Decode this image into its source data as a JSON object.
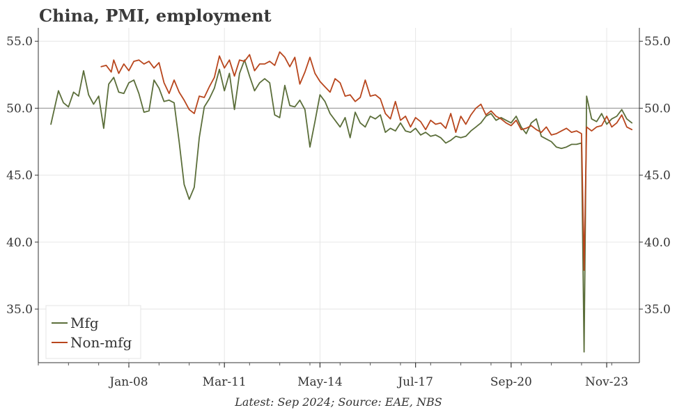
{
  "chart_data": {
    "type": "line",
    "title": "China, PMI, employment",
    "source": "Latest: Sep 2024; Source: EAE, NBS",
    "x_tick_labels": [
      "Jan-08",
      "Mar-11",
      "May-14",
      "Jul-17",
      "Sep-20",
      "Nov-23"
    ],
    "x_range": [
      "2005-01",
      "2024-12"
    ],
    "ylim": [
      31,
      56
    ],
    "y_ticks": [
      35,
      40,
      45,
      50,
      55
    ],
    "y_tick_labels": [
      "35.0",
      "40.0",
      "45.0",
      "50.0",
      "55.0"
    ],
    "reference_line": 50,
    "grid": true,
    "legend_position": "bottom-left",
    "series": [
      {
        "name": "Mfg",
        "color": "#5b6e3a",
        "points": [
          [
            "2005-06",
            48.8
          ],
          [
            "2005-09",
            51.3
          ],
          [
            "2005-11",
            50.4
          ],
          [
            "2006-01",
            50.1
          ],
          [
            "2006-03",
            51.2
          ],
          [
            "2006-05",
            50.9
          ],
          [
            "2006-07",
            52.8
          ],
          [
            "2006-09",
            51.0
          ],
          [
            "2006-11",
            50.3
          ],
          [
            "2007-01",
            50.9
          ],
          [
            "2007-03",
            48.5
          ],
          [
            "2007-05",
            51.8
          ],
          [
            "2007-07",
            52.3
          ],
          [
            "2007-09",
            51.2
          ],
          [
            "2007-11",
            51.1
          ],
          [
            "2008-01",
            51.9
          ],
          [
            "2008-03",
            52.1
          ],
          [
            "2008-05",
            51.1
          ],
          [
            "2008-07",
            49.7
          ],
          [
            "2008-09",
            49.8
          ],
          [
            "2008-11",
            52.1
          ],
          [
            "2009-01",
            51.5
          ],
          [
            "2009-03",
            50.5
          ],
          [
            "2009-05",
            50.6
          ],
          [
            "2009-07",
            50.4
          ],
          [
            "2009-09",
            47.5
          ],
          [
            "2009-11",
            44.3
          ],
          [
            "2010-01",
            43.2
          ],
          [
            "2010-03",
            44.1
          ],
          [
            "2010-05",
            47.8
          ],
          [
            "2010-07",
            50.1
          ],
          [
            "2010-09",
            50.7
          ],
          [
            "2010-11",
            51.5
          ],
          [
            "2011-01",
            52.9
          ],
          [
            "2011-03",
            51.3
          ],
          [
            "2011-05",
            52.6
          ],
          [
            "2011-07",
            49.9
          ],
          [
            "2011-09",
            52.6
          ],
          [
            "2011-11",
            53.6
          ],
          [
            "2012-01",
            52.4
          ],
          [
            "2012-03",
            51.3
          ],
          [
            "2012-05",
            51.9
          ],
          [
            "2012-07",
            52.2
          ],
          [
            "2012-09",
            51.9
          ],
          [
            "2012-11",
            49.5
          ],
          [
            "2013-01",
            49.3
          ],
          [
            "2013-03",
            51.7
          ],
          [
            "2013-05",
            50.2
          ],
          [
            "2013-07",
            50.1
          ],
          [
            "2013-09",
            50.6
          ],
          [
            "2013-11",
            49.9
          ],
          [
            "2014-01",
            47.1
          ],
          [
            "2014-03",
            49.0
          ],
          [
            "2014-05",
            51.0
          ],
          [
            "2014-07",
            50.5
          ],
          [
            "2014-09",
            49.6
          ],
          [
            "2014-11",
            49.1
          ],
          [
            "2015-01",
            48.6
          ],
          [
            "2015-03",
            49.3
          ],
          [
            "2015-05",
            47.8
          ],
          [
            "2015-07",
            49.7
          ],
          [
            "2015-09",
            48.9
          ],
          [
            "2015-11",
            48.6
          ],
          [
            "2016-01",
            49.4
          ],
          [
            "2016-03",
            49.2
          ],
          [
            "2016-05",
            49.5
          ],
          [
            "2016-07",
            48.2
          ],
          [
            "2016-09",
            48.5
          ],
          [
            "2016-11",
            48.3
          ],
          [
            "2017-01",
            48.9
          ],
          [
            "2017-03",
            48.3
          ],
          [
            "2017-05",
            48.2
          ],
          [
            "2017-07",
            48.5
          ],
          [
            "2017-09",
            48.0
          ],
          [
            "2017-11",
            48.2
          ],
          [
            "2018-01",
            47.9
          ],
          [
            "2018-03",
            48.0
          ],
          [
            "2018-05",
            47.8
          ],
          [
            "2018-07",
            47.4
          ],
          [
            "2018-09",
            47.6
          ],
          [
            "2018-11",
            47.9
          ],
          [
            "2019-01",
            47.8
          ],
          [
            "2019-03",
            47.9
          ],
          [
            "2019-05",
            48.3
          ],
          [
            "2019-07",
            48.6
          ],
          [
            "2019-09",
            48.9
          ],
          [
            "2019-11",
            49.4
          ],
          [
            "2020-01",
            49.6
          ],
          [
            "2020-03",
            49.1
          ],
          [
            "2020-05",
            49.3
          ],
          [
            "2020-07",
            49.1
          ],
          [
            "2020-09",
            48.9
          ],
          [
            "2020-11",
            49.4
          ],
          [
            "2021-01",
            48.6
          ],
          [
            "2021-03",
            48.1
          ],
          [
            "2021-05",
            48.9
          ],
          [
            "2021-07",
            49.2
          ],
          [
            "2021-09",
            47.9
          ],
          [
            "2021-11",
            47.7
          ],
          [
            "2022-01",
            47.5
          ],
          [
            "2022-03",
            47.1
          ],
          [
            "2022-05",
            47.0
          ],
          [
            "2022-07",
            47.1
          ],
          [
            "2022-09",
            47.3
          ],
          [
            "2022-11",
            47.3
          ],
          [
            "2023-01",
            47.4
          ],
          [
            "2023-02",
            31.8
          ],
          [
            "2023-03",
            50.9
          ],
          [
            "2023-05",
            49.2
          ],
          [
            "2023-07",
            49.0
          ],
          [
            "2023-09",
            49.6
          ],
          [
            "2023-11",
            48.8
          ],
          [
            "2024-01",
            49.2
          ],
          [
            "2024-03",
            49.4
          ],
          [
            "2024-05",
            49.9
          ],
          [
            "2024-07",
            49.2
          ],
          [
            "2024-09",
            48.9
          ]
        ]
      },
      {
        "name": "Non-mfg",
        "color": "#b8461d",
        "points": [
          [
            "2007-02",
            53.1
          ],
          [
            "2007-04",
            53.2
          ],
          [
            "2007-06",
            52.7
          ],
          [
            "2007-07",
            53.6
          ],
          [
            "2007-09",
            52.6
          ],
          [
            "2007-11",
            53.3
          ],
          [
            "2008-01",
            52.8
          ],
          [
            "2008-03",
            53.5
          ],
          [
            "2008-05",
            53.6
          ],
          [
            "2008-07",
            53.3
          ],
          [
            "2008-09",
            53.5
          ],
          [
            "2008-11",
            53.0
          ],
          [
            "2009-01",
            53.4
          ],
          [
            "2009-03",
            51.9
          ],
          [
            "2009-05",
            51.1
          ],
          [
            "2009-07",
            52.1
          ],
          [
            "2009-09",
            51.2
          ],
          [
            "2009-11",
            50.6
          ],
          [
            "2010-01",
            49.9
          ],
          [
            "2010-03",
            49.6
          ],
          [
            "2010-05",
            50.9
          ],
          [
            "2010-07",
            50.8
          ],
          [
            "2010-09",
            51.6
          ],
          [
            "2010-11",
            52.3
          ],
          [
            "2011-01",
            53.9
          ],
          [
            "2011-03",
            53.0
          ],
          [
            "2011-05",
            53.6
          ],
          [
            "2011-07",
            52.4
          ],
          [
            "2011-09",
            53.6
          ],
          [
            "2011-11",
            53.5
          ],
          [
            "2012-01",
            54.0
          ],
          [
            "2012-03",
            52.8
          ],
          [
            "2012-05",
            53.3
          ],
          [
            "2012-07",
            53.3
          ],
          [
            "2012-09",
            53.5
          ],
          [
            "2012-11",
            53.2
          ],
          [
            "2013-01",
            54.2
          ],
          [
            "2013-03",
            53.8
          ],
          [
            "2013-05",
            53.1
          ],
          [
            "2013-07",
            53.8
          ],
          [
            "2013-09",
            51.8
          ],
          [
            "2013-11",
            52.7
          ],
          [
            "2014-01",
            53.8
          ],
          [
            "2014-03",
            52.6
          ],
          [
            "2014-05",
            52.0
          ],
          [
            "2014-07",
            51.6
          ],
          [
            "2014-09",
            51.2
          ],
          [
            "2014-11",
            52.2
          ],
          [
            "2015-01",
            51.9
          ],
          [
            "2015-03",
            50.9
          ],
          [
            "2015-05",
            51.0
          ],
          [
            "2015-07",
            50.5
          ],
          [
            "2015-09",
            50.8
          ],
          [
            "2015-11",
            52.1
          ],
          [
            "2016-01",
            50.9
          ],
          [
            "2016-03",
            51.0
          ],
          [
            "2016-05",
            50.7
          ],
          [
            "2016-07",
            49.6
          ],
          [
            "2016-09",
            49.2
          ],
          [
            "2016-11",
            50.5
          ],
          [
            "2017-01",
            49.1
          ],
          [
            "2017-03",
            49.4
          ],
          [
            "2017-05",
            48.6
          ],
          [
            "2017-07",
            49.3
          ],
          [
            "2017-09",
            49.0
          ],
          [
            "2017-11",
            48.4
          ],
          [
            "2018-01",
            49.1
          ],
          [
            "2018-03",
            48.8
          ],
          [
            "2018-05",
            48.9
          ],
          [
            "2018-07",
            48.5
          ],
          [
            "2018-09",
            49.6
          ],
          [
            "2018-11",
            48.2
          ],
          [
            "2019-01",
            49.4
          ],
          [
            "2019-03",
            48.8
          ],
          [
            "2019-05",
            49.5
          ],
          [
            "2019-07",
            50.0
          ],
          [
            "2019-09",
            50.3
          ],
          [
            "2019-11",
            49.5
          ],
          [
            "2020-01",
            49.8
          ],
          [
            "2020-03",
            49.4
          ],
          [
            "2020-05",
            49.2
          ],
          [
            "2020-07",
            48.9
          ],
          [
            "2020-09",
            48.7
          ],
          [
            "2020-11",
            49.1
          ],
          [
            "2021-01",
            48.4
          ],
          [
            "2021-03",
            48.5
          ],
          [
            "2021-05",
            48.7
          ],
          [
            "2021-07",
            48.4
          ],
          [
            "2021-09",
            48.2
          ],
          [
            "2021-11",
            48.6
          ],
          [
            "2022-01",
            48.0
          ],
          [
            "2022-03",
            48.1
          ],
          [
            "2022-05",
            48.3
          ],
          [
            "2022-07",
            48.5
          ],
          [
            "2022-09",
            48.2
          ],
          [
            "2022-11",
            48.3
          ],
          [
            "2023-01",
            48.1
          ],
          [
            "2023-02",
            37.9
          ],
          [
            "2023-03",
            48.6
          ],
          [
            "2023-05",
            48.3
          ],
          [
            "2023-07",
            48.6
          ],
          [
            "2023-09",
            48.7
          ],
          [
            "2023-11",
            49.4
          ],
          [
            "2024-01",
            48.6
          ],
          [
            "2024-03",
            48.9
          ],
          [
            "2024-05",
            49.5
          ],
          [
            "2024-07",
            48.6
          ],
          [
            "2024-09",
            48.4
          ]
        ]
      }
    ]
  }
}
